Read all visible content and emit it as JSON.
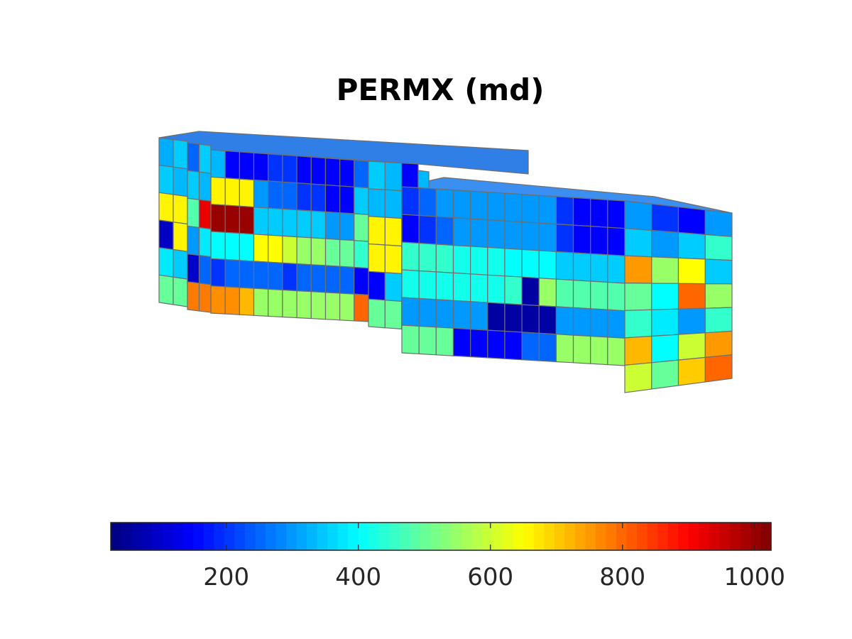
{
  "chart_data": {
    "type": "heatmap",
    "title": "PERMX (md)",
    "colormap": "jet",
    "colorbar": {
      "orientation": "horizontal",
      "placement": "bottom",
      "range": [
        25,
        1025
      ],
      "ticks": [
        200,
        400,
        600,
        800,
        1000
      ],
      "tick_labels": [
        "200",
        "400",
        "600",
        "800",
        "1000"
      ]
    },
    "blocks": [
      {
        "name": "back-left block front face",
        "values": [
          [
            330,
            150,
            150,
            150,
            200,
            200,
            150,
            150,
            150,
            150,
            250
          ],
          [
            660,
            660,
            660,
            300,
            250,
            250,
            200,
            200,
            150,
            150,
            350
          ],
          [
            1000,
            1000,
            1000,
            350,
            350,
            350,
            350,
            350,
            300,
            300,
            500
          ],
          [
            400,
            400,
            400,
            650,
            650,
            600,
            550,
            550,
            500,
            500,
            450
          ],
          [
            200,
            250,
            250,
            250,
            250,
            200,
            250,
            250,
            250,
            250,
            150
          ],
          [
            760,
            760,
            720,
            550,
            550,
            550,
            550,
            550,
            550,
            550,
            800
          ]
        ]
      },
      {
        "name": "back-left block end face",
        "values": [
          [
            350,
            330,
            150
          ],
          [
            330,
            330,
            150
          ],
          [
            660,
            660,
            350
          ],
          [
            660,
            660,
            350
          ],
          [
            150,
            350,
            350
          ],
          [
            500,
            500,
            500
          ]
        ]
      },
      {
        "name": "front-right block front face",
        "values": [
          [
            200,
            250,
            300,
            300,
            300,
            300,
            300,
            300,
            300,
            200,
            150,
            150,
            150
          ],
          [
            150,
            200,
            250,
            300,
            300,
            300,
            300,
            300,
            300,
            200,
            150,
            150,
            150
          ],
          [
            450,
            450,
            450,
            420,
            420,
            420,
            400,
            400,
            400,
            350,
            350,
            350,
            350
          ],
          [
            420,
            420,
            420,
            420,
            420,
            420,
            450,
            60,
            550,
            480,
            480,
            480,
            480
          ],
          [
            300,
            300,
            300,
            300,
            300,
            60,
            60,
            60,
            60,
            300,
            300,
            300,
            300
          ],
          [
            500,
            500,
            500,
            150,
            150,
            150,
            150,
            250,
            250,
            550,
            550,
            550,
            550
          ]
        ]
      },
      {
        "name": "front-right block end face",
        "values": [
          [
            300,
            200,
            150,
            300
          ],
          [
            350,
            300,
            350,
            450
          ],
          [
            750,
            550,
            650,
            350
          ],
          [
            500,
            400,
            800,
            550
          ],
          [
            450,
            380,
            300,
            450
          ],
          [
            720,
            400,
            600,
            750
          ],
          [
            600,
            500,
            700,
            800
          ]
        ]
      },
      {
        "name": "left end face",
        "values": [
          [
            320,
            350
          ],
          [
            350,
            330
          ],
          [
            660,
            660
          ],
          [
            90,
            660
          ],
          [
            380,
            350
          ],
          [
            500,
            500
          ]
        ]
      },
      {
        "name": "middle step face",
        "values": [
          [
            250,
            350
          ],
          [
            350,
            330
          ],
          [
            480,
            920
          ],
          [
            300,
            380
          ],
          [
            100,
            250
          ],
          [
            780,
            780
          ]
        ]
      },
      {
        "name": "middle front face",
        "values": [
          [
            330
          ],
          [
            350
          ],
          [
            950
          ],
          [
            350
          ],
          [
            200
          ],
          [
            820
          ]
        ]
      }
    ]
  }
}
